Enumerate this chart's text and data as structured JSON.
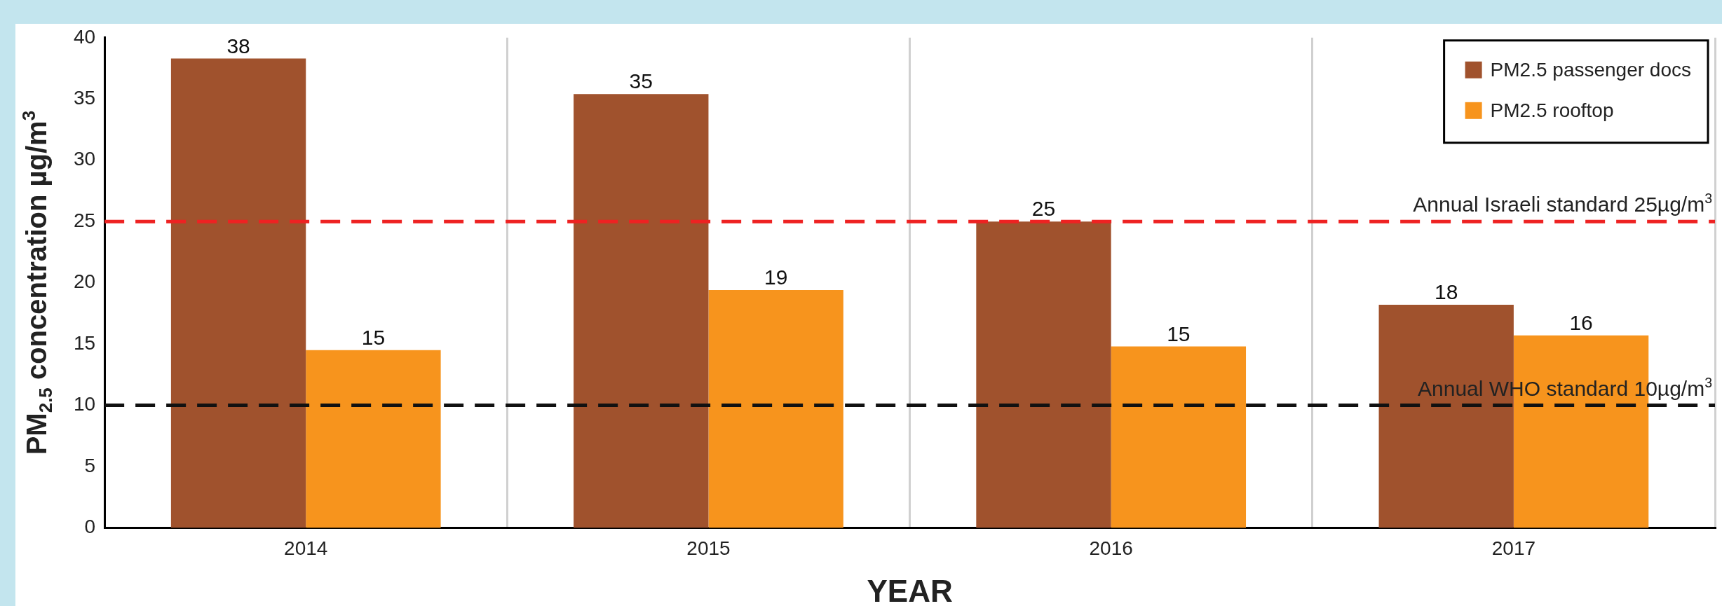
{
  "chart_data": {
    "type": "bar",
    "xlabel": "YEAR",
    "ylabel": "PM$_{2.5}$ concentration µg/m$^{3}$",
    "categories": [
      "2014",
      "2015",
      "2016",
      "2017"
    ],
    "series": [
      {
        "name": "PM2.5 passenger docs",
        "color": "#a0522d",
        "values": [
          38.3,
          35.4,
          25.0,
          18.2
        ],
        "value_labels": [
          "38",
          "35",
          "25",
          "18"
        ]
      },
      {
        "name": "PM2.5 rooftop",
        "color": "#f7941d",
        "values": [
          14.5,
          19.4,
          14.8,
          15.7
        ],
        "value_labels": [
          "15",
          "19",
          "15",
          "16"
        ]
      }
    ],
    "ylim": [
      0,
      40
    ],
    "yticks": [
      0,
      5,
      10,
      15,
      20,
      25,
      30,
      35,
      40
    ],
    "grid": "x",
    "legend": "top right",
    "ref_lines": [
      {
        "axis": "y",
        "value": 25,
        "label": "Annual Israeli standard 25µg/m$^{3}$",
        "color": "#ee2222",
        "line_style": "dashed"
      },
      {
        "axis": "y",
        "value": 10,
        "label": "Annual WHO standard 10µg/m$^{3}$",
        "color": "#111111",
        "line_style": "dashed"
      }
    ]
  }
}
